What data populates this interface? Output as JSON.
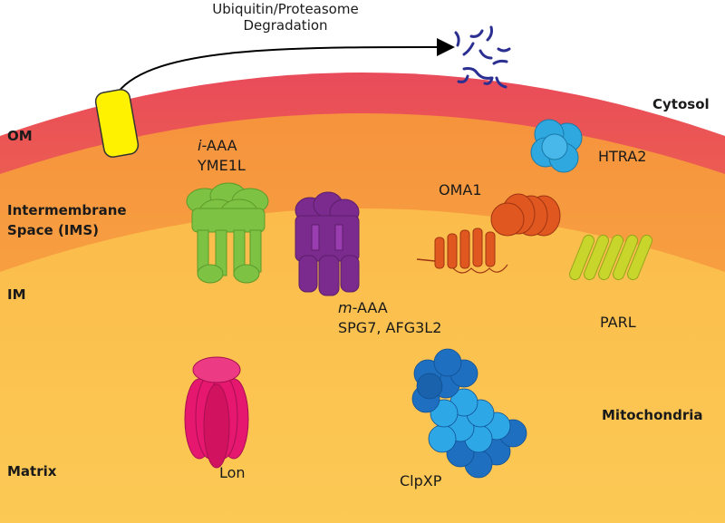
{
  "regions": {
    "om": "OM",
    "ims_line1": "Intermembrane",
    "ims_line2": "Space (IMS)",
    "im": "IM",
    "matrix": "Matrix",
    "cytosol": "Cytosol",
    "mitochondria": "Mitochondria"
  },
  "process": {
    "line1": "Ubiquitin/Proteasome",
    "line2": "Degradation"
  },
  "proteases": {
    "iaaa_prefix": "i",
    "iaaa_suffix": "-AAA",
    "yme1l": "YME1L",
    "maaa_prefix": "m",
    "maaa_suffix": "-AAA",
    "maaa_members": "SPG7, AFG3L2",
    "oma1": "OMA1",
    "htra2": "HTRA2",
    "parl": "PARL",
    "lon": "Lon",
    "clpxp": "ClpXP"
  },
  "colors": {
    "om_band_top": "#e94b5a",
    "om_band_bottom": "#f39a3c",
    "ims": "#f7a640",
    "matrix": "#fbc24e",
    "yellow_substrate": "#fff200",
    "fragments": "#2c2f92",
    "iaaa": "#7dc242",
    "maaa": "#7b2a8e",
    "oma1": "#e0571f",
    "htra2": "#2fa8e0",
    "parl": "#c8d62b",
    "lon": "#e5176f",
    "clpxp_dark": "#1f6fc0",
    "clpxp_light": "#2ea7e6"
  }
}
